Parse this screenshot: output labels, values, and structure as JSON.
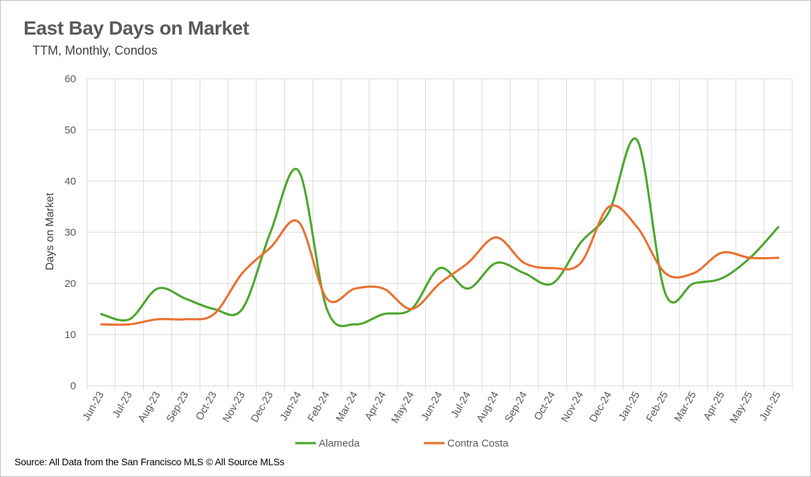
{
  "colors": {
    "Alameda": "#4ea72e",
    "Contra Costa": "#e97132",
    "grid": "#d9d9d9",
    "text": "#595959"
  },
  "chart_data": {
    "type": "line",
    "title": "East Bay Days on Market",
    "subtitle": "TTM, Monthly, Condos",
    "source": "Source: All Data from the San Francisco MLS © All Source MLSs",
    "xlabel": "",
    "ylabel": "Days on Market",
    "ylim": [
      0,
      60
    ],
    "yticks": [
      "0",
      "10",
      "20",
      "30",
      "40",
      "50",
      "60"
    ],
    "grid": true,
    "legend_position": "bottom",
    "categories": [
      "Jun-23",
      "Jul-23",
      "Aug-23",
      "Sep-23",
      "Oct-23",
      "Nov-23",
      "Dec-23",
      "Jan-24",
      "Feb-24",
      "Mar-24",
      "Apr-24",
      "May-24",
      "Jun-24",
      "Jul-24",
      "Aug-24",
      "Sep-24",
      "Oct-24",
      "Nov-24",
      "Dec-24",
      "Jan-25",
      "Feb-25",
      "Mar-25",
      "Apr-25",
      "May-25",
      "Jun-25"
    ],
    "series": [
      {
        "name": "Alameda",
        "values": [
          14,
          13,
          19,
          17,
          15,
          15,
          30,
          42,
          15,
          12,
          14,
          15,
          23,
          19,
          24,
          22,
          20,
          28,
          34,
          48,
          18,
          20,
          21,
          25,
          31
        ]
      },
      {
        "name": "Contra Costa",
        "values": [
          12,
          12,
          13,
          13,
          14,
          22,
          27,
          32,
          17,
          19,
          19,
          15,
          20,
          24,
          29,
          24,
          23,
          24,
          35,
          31,
          22,
          22,
          26,
          25,
          25
        ]
      }
    ]
  }
}
